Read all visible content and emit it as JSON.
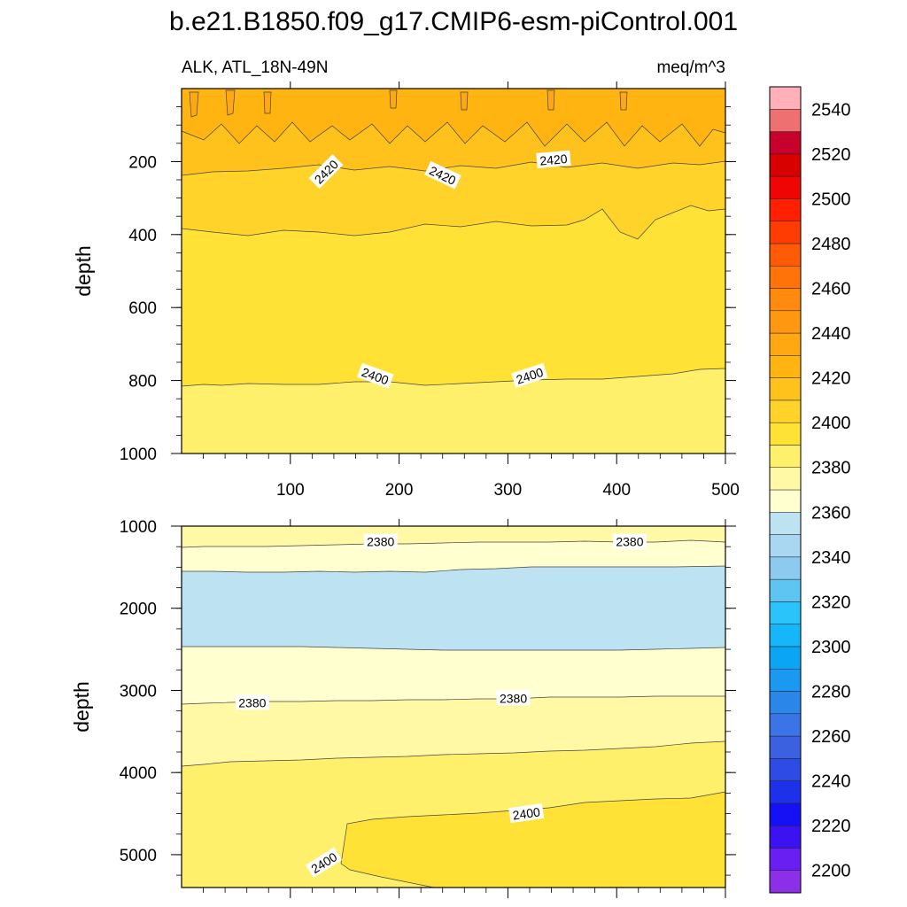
{
  "title": "b.e21.B1850.f09_g17.CMIP6-esm-piControl.001",
  "chart_data": {
    "type": "contour",
    "variable": "ALK, ATL_18N-49N",
    "units": "meq/m^3",
    "xlim": [
      0,
      500
    ],
    "x_ticks": [
      100,
      200,
      300,
      400,
      500
    ],
    "ylabel": "depth",
    "colorbar": {
      "levels": [
        2200,
        2210,
        2220,
        2230,
        2240,
        2250,
        2260,
        2270,
        2280,
        2290,
        2300,
        2310,
        2320,
        2330,
        2340,
        2350,
        2360,
        2370,
        2380,
        2390,
        2400,
        2410,
        2420,
        2430,
        2440,
        2450,
        2460,
        2470,
        2480,
        2490,
        2500,
        2510,
        2520,
        2530,
        2540,
        2550
      ],
      "tick_labels": [
        2200,
        2220,
        2240,
        2260,
        2280,
        2300,
        2320,
        2340,
        2360,
        2380,
        2400,
        2420,
        2440,
        2460,
        2480,
        2500,
        2520,
        2540
      ],
      "colors": [
        "#8b2fe8",
        "#6a1ff2",
        "#3c12f2",
        "#1610f5",
        "#1d30ea",
        "#2e4be6",
        "#3b60e0",
        "#3a74e6",
        "#2b86ea",
        "#1a98f2",
        "#0aa6f5",
        "#16b6fa",
        "#2bc4fa",
        "#5ec5f2",
        "#8ccbef",
        "#a9d6f0",
        "#bde3f3",
        "#ffffd0",
        "#fff9a6",
        "#fff06c",
        "#ffe235",
        "#ffd32a",
        "#ffc21c",
        "#ffb412",
        "#ffa812",
        "#ff9810",
        "#ff8a0e",
        "#ff7308",
        "#ff5a05",
        "#ff3d03",
        "#ff2000",
        "#f00505",
        "#d90000",
        "#c8002c",
        "#ee7070",
        "#ffb0b8"
      ]
    },
    "panels": [
      {
        "name": "upper",
        "ylim": [
          0,
          1000
        ],
        "y_ticks": [
          200,
          400,
          600,
          800,
          1000
        ],
        "contour_labels": [
          {
            "text": "2420",
            "x": 133,
            "y": 228,
            "angle": -45
          },
          {
            "text": "2420",
            "x": 240,
            "y": 238,
            "angle": 25
          },
          {
            "text": "2420",
            "x": 342,
            "y": 195,
            "angle": -5
          },
          {
            "text": "2400",
            "x": 178,
            "y": 788,
            "angle": 20
          },
          {
            "text": "2400",
            "x": 320,
            "y": 787,
            "angle": -18
          }
        ]
      },
      {
        "name": "lower",
        "ylim": [
          1000,
          5400
        ],
        "y_ticks": [
          1000,
          2000,
          3000,
          4000,
          5000
        ],
        "contour_labels": [
          {
            "text": "2380",
            "x": 183,
            "y": 1190,
            "angle": 0
          },
          {
            "text": "2380",
            "x": 412,
            "y": 1190,
            "angle": 0
          },
          {
            "text": "2380",
            "x": 65,
            "y": 3150,
            "angle": 0
          },
          {
            "text": "2380",
            "x": 305,
            "y": 3095,
            "angle": 0
          },
          {
            "text": "2400",
            "x": 317,
            "y": 4500,
            "angle": -8
          },
          {
            "text": "2400",
            "x": 131,
            "y": 5100,
            "angle": -32
          }
        ]
      }
    ]
  }
}
